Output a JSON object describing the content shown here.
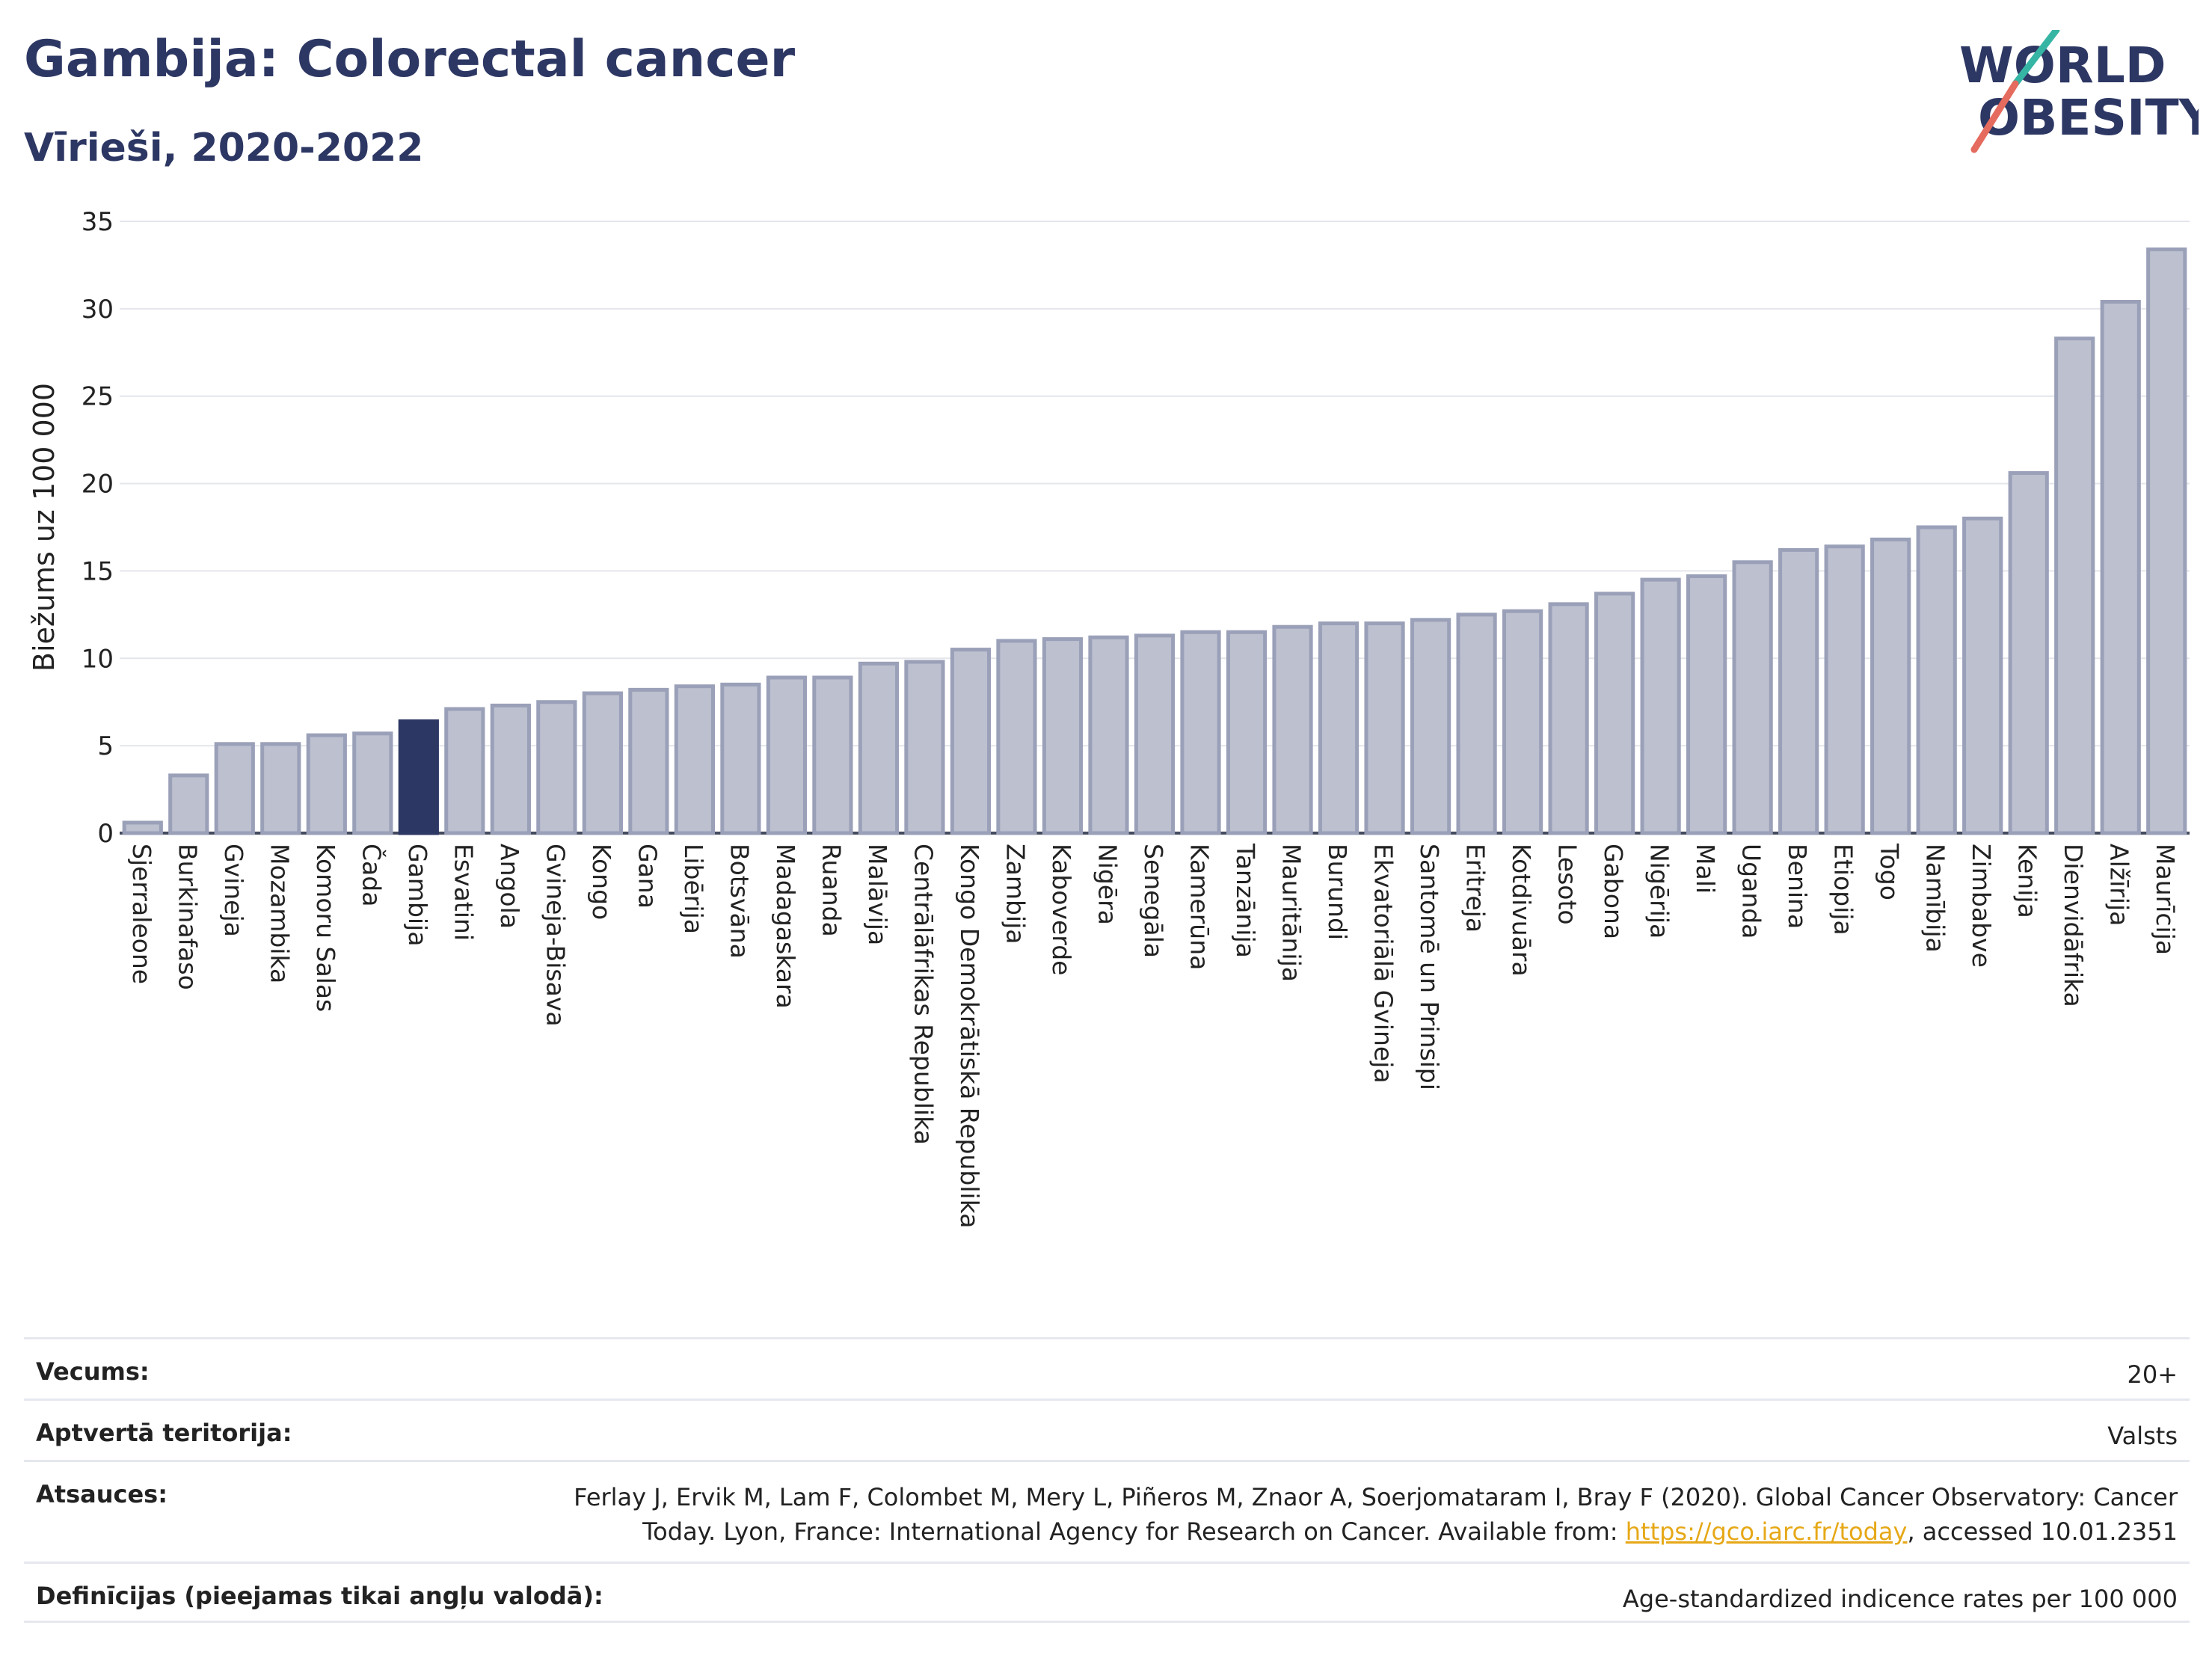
{
  "header": {
    "title": "Gambija: Colorectal cancer",
    "subtitle": "Vīrieši, 2020-2022"
  },
  "logo": {
    "line1": "WORLD",
    "line2": "OBESITY"
  },
  "colors": {
    "bar": "#bcc0cf",
    "bar_edge": "#9aa0b8",
    "highlight": "#2d3763",
    "title": "#2d3763",
    "link": "#e6a817"
  },
  "chart_data": {
    "type": "bar",
    "title": "",
    "ylabel": "Biežums uz 100 000",
    "xlabel": "",
    "ylim": [
      0,
      35
    ],
    "yticks": [
      0,
      5,
      10,
      15,
      20,
      25,
      30,
      35
    ],
    "grid": true,
    "highlight": "Gambija",
    "categories": [
      "Sjerraleone",
      "Burkinafaso",
      "Gvineja",
      "Mozambika",
      "Komoru Salas",
      "Čada",
      "Gambija",
      "Esvatini",
      "Angola",
      "Gvineja-Bisava",
      "Kongo",
      "Gana",
      "Libērija",
      "Botsvāna",
      "Madagaskara",
      "Ruanda",
      "Malāvija",
      "Centrālāfrikas Republika",
      "Kongo Demokrātiskā Republika",
      "Zambija",
      "Kaboverde",
      "Nigēra",
      "Senegāla",
      "Kamerūna",
      "Tanzānija",
      "Mauritānija",
      "Burundi",
      "Ekvatoriālā Gvineja",
      "Santomē un Prinsipi",
      "Eritreja",
      "Kotdivuāra",
      "Lesoto",
      "Gabona",
      "Nigērija",
      "Mali",
      "Uganda",
      "Benina",
      "Etiopija",
      "Togo",
      "Namībija",
      "Zimbabve",
      "Kenija",
      "Dienvidāfrika",
      "Alžīrija",
      "Maurīcija"
    ],
    "values": [
      0.6,
      3.3,
      5.1,
      5.1,
      5.6,
      5.7,
      6.4,
      7.1,
      7.3,
      7.5,
      8.0,
      8.2,
      8.4,
      8.5,
      8.9,
      8.9,
      9.7,
      9.8,
      10.5,
      11.0,
      11.1,
      11.2,
      11.3,
      11.5,
      11.5,
      11.8,
      12.0,
      12.0,
      12.2,
      12.5,
      12.7,
      13.1,
      13.7,
      14.5,
      14.7,
      15.5,
      16.2,
      16.4,
      16.8,
      17.5,
      18.0,
      20.6,
      28.3,
      30.4,
      33.4
    ]
  },
  "meta": {
    "age_label": "Vecums:",
    "age_value": "20+",
    "coverage_label": "Aptvertā teritorija:",
    "coverage_value": "Valsts",
    "refs_label": "Atsauces:",
    "refs_line1": "Ferlay J, Ervik M, Lam F, Colombet M, Mery L, Piñeros M, Znaor A, Soerjomataram I, Bray F (2020). Global Cancer Observatory: Cancer",
    "refs_line2_pre": "Today. Lyon, France: International Agency for Research on Cancer. Available from: ",
    "refs_link": "https://gco.iarc.fr/today",
    "refs_line2_post": ", accessed 10.01.2351",
    "defs_label": "Definīcijas (pieejamas tikai angļu valodā):",
    "defs_value": "Age-standardized indicence rates per 100 000"
  }
}
